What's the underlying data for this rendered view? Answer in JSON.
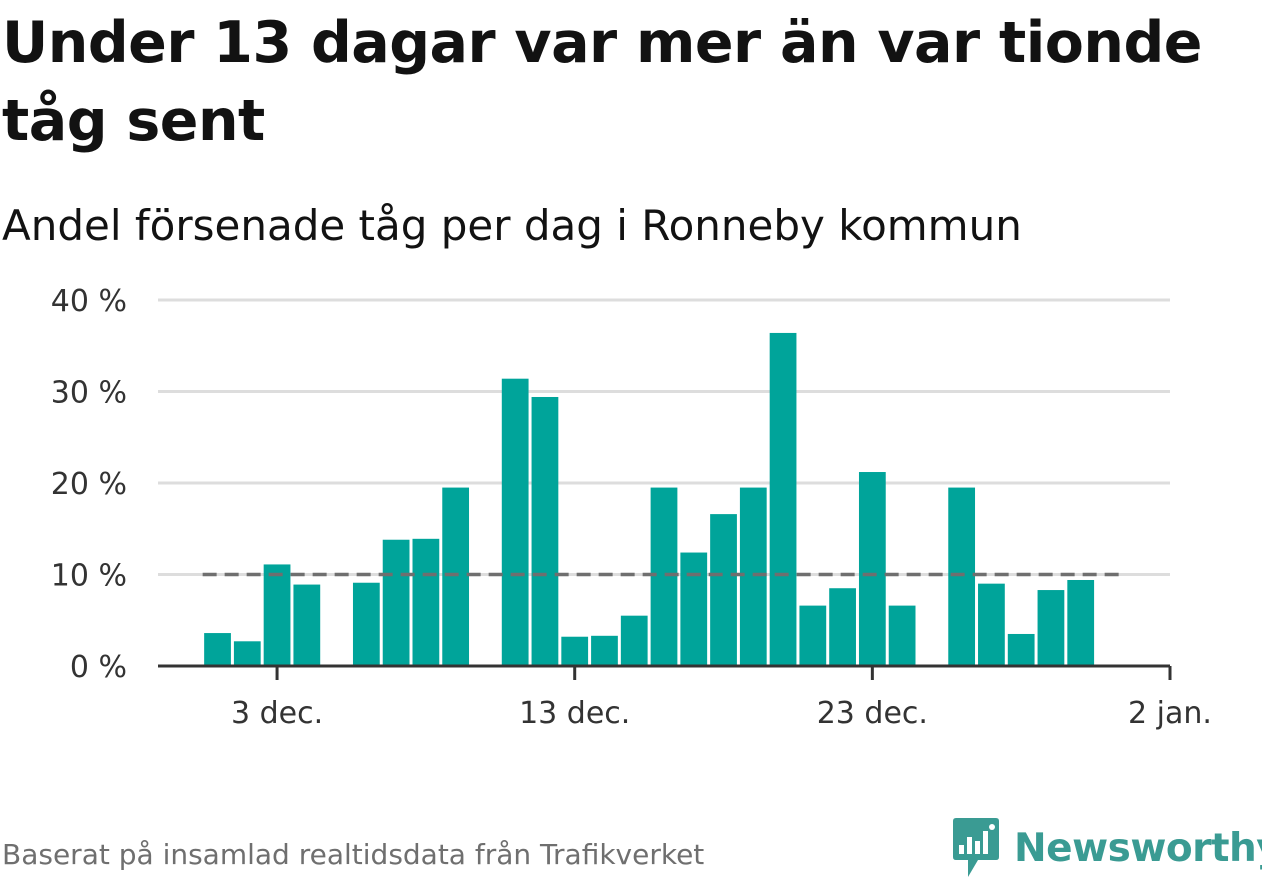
{
  "title": "Under 13 dagar var mer än var tionde tåg sent",
  "subtitle": "Andel försenade tåg per dag i Ronneby kommun",
  "footer": "Baserat på insamlad realtidsdata från Trafikverket",
  "brand": {
    "name": "Newsworthy",
    "color": "#3a9b93"
  },
  "colors": {
    "bar": "#00a49a",
    "reference_line": "#6f6f6f",
    "grid": "#dddddd",
    "axis": "#333333"
  },
  "chart_data": {
    "type": "bar",
    "title": "Andel försenade tåg per dag i Ronneby kommun",
    "xlabel": "",
    "ylabel": "",
    "y_unit": "%",
    "ylim": [
      0,
      40
    ],
    "yticks": [
      0,
      10,
      20,
      30,
      40
    ],
    "ytick_labels": [
      "0 %",
      "10 %",
      "20 %",
      "30 %",
      "40 %"
    ],
    "x_axis": {
      "type": "date",
      "range": [
        "2019-11-29",
        "2020-01-02"
      ],
      "ticks": [
        "2019-12-03",
        "2019-12-13",
        "2019-12-23",
        "2020-01-02"
      ],
      "tick_labels": [
        "3 dec.",
        "13 dec.",
        "23 dec.",
        "2 jan."
      ]
    },
    "grid": true,
    "legend": "none",
    "reference_line": {
      "y": 10,
      "style": "dashed",
      "from": "2019-12-01",
      "to": "2019-12-31"
    },
    "dates": [
      "2019-12-01",
      "2019-12-02",
      "2019-12-03",
      "2019-12-04",
      "2019-12-05",
      "2019-12-06",
      "2019-12-07",
      "2019-12-08",
      "2019-12-09",
      "2019-12-10",
      "2019-12-11",
      "2019-12-12",
      "2019-12-13",
      "2019-12-14",
      "2019-12-15",
      "2019-12-16",
      "2019-12-17",
      "2019-12-18",
      "2019-12-19",
      "2019-12-20",
      "2019-12-21",
      "2019-12-22",
      "2019-12-23",
      "2019-12-24",
      "2019-12-25",
      "2019-12-26",
      "2019-12-27",
      "2019-12-28",
      "2019-12-29",
      "2019-12-30",
      "2019-12-31"
    ],
    "values": [
      3.6,
      2.7,
      11.1,
      8.9,
      null,
      9.1,
      13.8,
      13.9,
      19.5,
      null,
      31.4,
      29.4,
      3.2,
      3.3,
      5.5,
      19.5,
      12.4,
      16.6,
      19.5,
      36.4,
      6.6,
      8.5,
      21.2,
      6.6,
      null,
      19.5,
      9.0,
      3.5,
      8.3,
      9.4,
      null
    ]
  }
}
